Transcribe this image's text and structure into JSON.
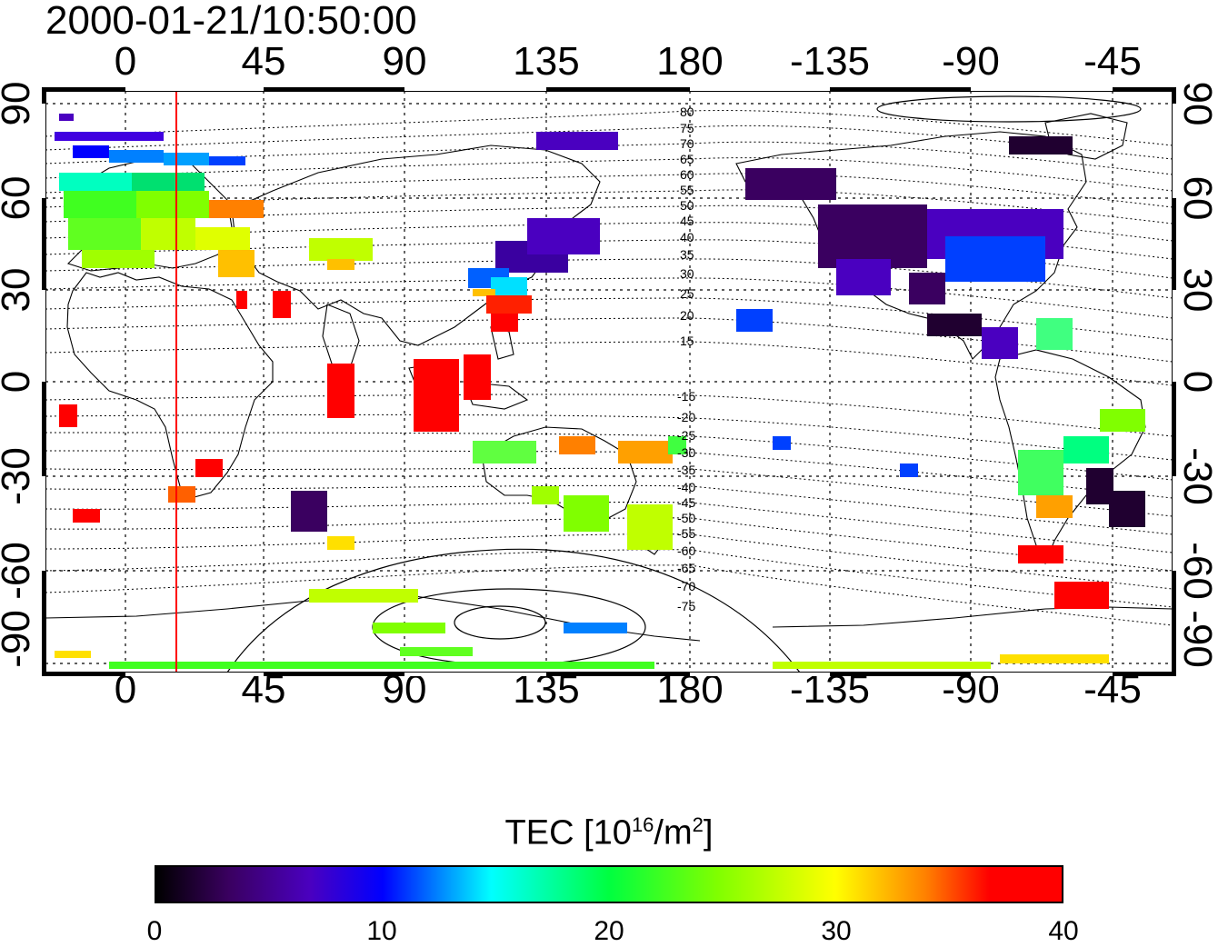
{
  "timestamp": "2000-01-21/10:50:00",
  "map": {
    "top_lon_ticks": [
      "0",
      "45",
      "90",
      "135",
      "180",
      "-135",
      "-90",
      "-45"
    ],
    "bottom_lon_ticks": [
      "0",
      "45",
      "90",
      "135",
      "180",
      "-135",
      "-90",
      "-45"
    ],
    "left_lat_ticks": [
      "90",
      "60",
      "30",
      "0",
      "-30",
      "-60",
      "-90"
    ],
    "right_lat_ticks": [
      "90",
      "60",
      "30",
      "0",
      "-30",
      "-60",
      "-90"
    ],
    "contour_labels": [
      "80",
      "75",
      "70",
      "65",
      "60",
      "55",
      "50",
      "45",
      "40",
      "35",
      "30",
      "25",
      "20",
      "15",
      "-15",
      "-20",
      "-25",
      "-30",
      "-35",
      "-40",
      "-45",
      "-50",
      "-55",
      "-60",
      "-65",
      "-70",
      "-75"
    ],
    "marker_line_color": "#ff0000"
  },
  "colorbar": {
    "label_main": "TEC  [10",
    "label_exp": "16",
    "label_unit": "/m",
    "label_unit_exp": "2",
    "label_close": "]",
    "ticks": [
      "0",
      "10",
      "20",
      "30",
      "40"
    ],
    "range": [
      0,
      40
    ]
  },
  "colors": {
    "c0": "#000000",
    "c5": "#4a00c0",
    "c10": "#0000ff",
    "c15": "#00ffff",
    "c20": "#00ff40",
    "c25": "#80ff00",
    "c30": "#ffff00",
    "c35": "#ff8000",
    "c40": "#ff0000"
  }
}
